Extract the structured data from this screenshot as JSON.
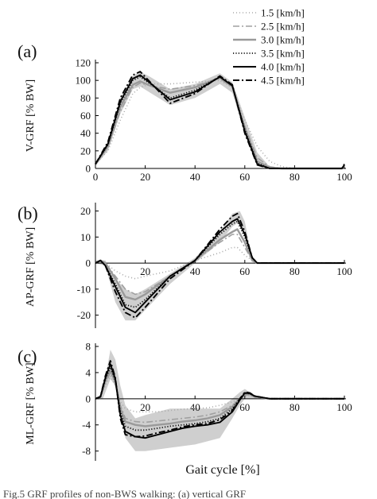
{
  "figure": {
    "x_label": "Gait cycle [%]",
    "caption_fragment": "Fig.5  GRF profiles of non-BWS walking: (a) vertical GRF"
  },
  "legend": [
    {
      "label": "1.5 [km/h]",
      "color": "#a8a8a8",
      "dash": "1 3",
      "width": 1.6
    },
    {
      "label": "2.5 [km/h]",
      "color": "#a0a0a0",
      "dash": "8 3 2 3",
      "width": 1.6
    },
    {
      "label": "3.0 [km/h]",
      "color": "#9a9a9a",
      "dash": "",
      "width": 2.4
    },
    {
      "label": "3.5 [km/h]",
      "color": "#111111",
      "dash": "1.2 2.2",
      "width": 1.8
    },
    {
      "label": "4.0 [km/h]",
      "color": "#000000",
      "dash": "",
      "width": 1.9
    },
    {
      "label": "4.5 [km/h]",
      "color": "#000000",
      "dash": "8 3 2 3",
      "width": 1.9
    }
  ],
  "chart_data": [
    {
      "type": "line",
      "panel_label": "(a)",
      "ylabel": "V-GRF [% BW]",
      "xlim": [
        0,
        100
      ],
      "ylim": [
        0,
        120
      ],
      "xticks": [
        0,
        20,
        40,
        60,
        80,
        100
      ],
      "yticks": [
        0,
        20,
        40,
        60,
        80,
        100,
        120
      ],
      "x": [
        0,
        5,
        10,
        15,
        18,
        22,
        30,
        40,
        50,
        55,
        60,
        65,
        70,
        75,
        80,
        90,
        99,
        100
      ],
      "band": {
        "x": [
          0,
          5,
          10,
          15,
          18,
          22,
          30,
          40,
          50,
          55,
          60,
          65,
          70
        ],
        "low": [
          3,
          20,
          62,
          90,
          93,
          86,
          72,
          80,
          96,
          86,
          40,
          8,
          0
        ],
        "high": [
          6,
          30,
          80,
          105,
          110,
          104,
          90,
          96,
          108,
          98,
          58,
          18,
          2
        ]
      },
      "series": [
        {
          "name": "1.5 [km/h]",
          "values": [
            5,
            20,
            55,
            85,
            92,
            96,
            96,
            98,
            100,
            92,
            55,
            25,
            8,
            2,
            0,
            0,
            0,
            3
          ]
        },
        {
          "name": "2.5 [km/h]",
          "values": [
            5,
            24,
            65,
            92,
            97,
            94,
            90,
            94,
            102,
            92,
            48,
            12,
            2,
            0,
            0,
            0,
            0,
            3
          ]
        },
        {
          "name": "3.0 [km/h]",
          "values": [
            5,
            25,
            70,
            95,
            99,
            94,
            86,
            92,
            103,
            93,
            46,
            8,
            1,
            0,
            0,
            0,
            0,
            3
          ]
        },
        {
          "name": "3.5 [km/h]",
          "values": [
            5,
            27,
            74,
            100,
            104,
            96,
            80,
            89,
            104,
            94,
            44,
            6,
            0,
            0,
            0,
            0,
            0,
            4
          ]
        },
        {
          "name": "4.0 [km/h]",
          "values": [
            5,
            28,
            76,
            102,
            106,
            97,
            78,
            87,
            104,
            94,
            42,
            5,
            0,
            0,
            0,
            0,
            0,
            4
          ]
        },
        {
          "name": "4.5 [km/h]",
          "values": [
            5,
            30,
            80,
            106,
            110,
            98,
            74,
            85,
            105,
            95,
            40,
            4,
            0,
            0,
            0,
            0,
            0,
            5
          ]
        }
      ]
    },
    {
      "type": "line",
      "panel_label": "(b)",
      "ylabel": "AP-GRF [% BW]",
      "xlim": [
        0,
        100
      ],
      "ylim": [
        -25,
        22
      ],
      "xticks": [
        20,
        40,
        60,
        80,
        100
      ],
      "yticks": [
        -20,
        -10,
        0,
        10,
        20
      ],
      "x": [
        0,
        2,
        4,
        8,
        12,
        16,
        20,
        30,
        40,
        50,
        55,
        57,
        60,
        63,
        65,
        70,
        80,
        90,
        100
      ],
      "band": {
        "x": [
          0,
          4,
          8,
          12,
          16,
          20,
          30,
          40,
          50,
          55,
          58,
          60,
          63
        ],
        "low": [
          0,
          -1,
          -15,
          -22,
          -22,
          -18,
          -8,
          0,
          8,
          14,
          16,
          12,
          0
        ],
        "high": [
          1,
          1,
          -6,
          -10,
          -12,
          -10,
          -4,
          2,
          12,
          19,
          20,
          16,
          1
        ]
      },
      "series": [
        {
          "name": "1.5 [km/h]",
          "values": [
            0,
            1,
            0,
            -3,
            -5,
            -6,
            -5,
            -3,
            1,
            4,
            6,
            6,
            3,
            1,
            0,
            0,
            0,
            0,
            0
          ]
        },
        {
          "name": "2.5 [km/h]",
          "values": [
            0,
            1,
            0,
            -5,
            -10,
            -12,
            -11,
            -5,
            1,
            8,
            11,
            11,
            6,
            1,
            0,
            0,
            0,
            0,
            0
          ]
        },
        {
          "name": "3.0 [km/h]",
          "values": [
            0,
            1,
            0,
            -6,
            -13,
            -14,
            -12,
            -5,
            1,
            9,
            12,
            13,
            8,
            1,
            0,
            0,
            0,
            0,
            0
          ]
        },
        {
          "name": "3.5 [km/h]",
          "values": [
            0,
            1,
            -1,
            -8,
            -16,
            -17,
            -14,
            -5,
            1,
            11,
            15,
            16,
            10,
            2,
            0,
            0,
            0,
            0,
            0
          ]
        },
        {
          "name": "4.0 [km/h]",
          "values": [
            0,
            1,
            -1,
            -9,
            -17,
            -19,
            -15,
            -5,
            1,
            12,
            16,
            17,
            11,
            2,
            0,
            0,
            0,
            0,
            0
          ]
        },
        {
          "name": "4.5 [km/h]",
          "values": [
            0,
            1,
            -1,
            -11,
            -19,
            -21,
            -17,
            -6,
            1,
            13,
            18,
            19,
            12,
            2,
            0,
            0,
            0,
            0,
            0
          ]
        }
      ]
    },
    {
      "type": "line",
      "panel_label": "(c)",
      "ylabel": "ML-GRF [% BW]",
      "xlim": [
        0,
        100
      ],
      "ylim": [
        -9.5,
        8
      ],
      "xticks": [
        20,
        40,
        60,
        80,
        100
      ],
      "yticks": [
        -8,
        -4,
        0,
        4,
        8
      ],
      "x": [
        0,
        2,
        4,
        6,
        8,
        10,
        12,
        16,
        20,
        25,
        30,
        35,
        40,
        45,
        50,
        55,
        58,
        60,
        62,
        64,
        70,
        80,
        90,
        100
      ],
      "band": {
        "x": [
          0,
          3,
          6,
          8,
          10,
          12,
          16,
          20,
          30,
          40,
          50,
          55,
          58,
          60,
          62,
          65
        ],
        "low": [
          0,
          0,
          3,
          2,
          -2,
          -6,
          -8,
          -8,
          -7.5,
          -7,
          -6,
          -3,
          -1,
          0,
          0,
          0
        ],
        "high": [
          0,
          1,
          7.5,
          6,
          2,
          -1,
          -3,
          -2.5,
          -1.5,
          -1.5,
          -1.5,
          0,
          1,
          1.5,
          1,
          0.3
        ]
      },
      "series": [
        {
          "name": "1.5 [km/h]",
          "values": [
            0,
            0.3,
            2,
            3.5,
            2,
            -0.5,
            -1.5,
            -2,
            -2,
            -2,
            -1.8,
            -1.6,
            -1.5,
            -1.4,
            -1,
            -0.5,
            0,
            0.4,
            0.5,
            0.3,
            0,
            0,
            0,
            0
          ]
        },
        {
          "name": "2.5 [km/h]",
          "values": [
            0,
            0.3,
            2.5,
            4,
            2.5,
            -1,
            -3,
            -3.5,
            -3.6,
            -3.4,
            -3.2,
            -3,
            -2.8,
            -2.5,
            -2,
            -1,
            0,
            0.6,
            0.6,
            0.3,
            0,
            0,
            0,
            0
          ]
        },
        {
          "name": "3.0 [km/h]",
          "values": [
            0,
            0.3,
            2.7,
            4.3,
            2.6,
            -1.5,
            -3.5,
            -4,
            -4.2,
            -4,
            -3.8,
            -3.5,
            -3.3,
            -3,
            -2.5,
            -1.2,
            0,
            0.7,
            0.7,
            0.3,
            0,
            0,
            0,
            0
          ]
        },
        {
          "name": "3.5 [km/h]",
          "values": [
            0,
            0.3,
            3,
            4.8,
            2.8,
            -2,
            -4.2,
            -4.8,
            -4.8,
            -4.5,
            -4.2,
            -4,
            -3.8,
            -3.5,
            -3,
            -1.5,
            0,
            0.8,
            0.8,
            0.4,
            0,
            0,
            0,
            0
          ]
        },
        {
          "name": "4.0 [km/h]",
          "values": [
            0,
            0.3,
            3.2,
            5.3,
            3,
            -2.5,
            -5,
            -5.8,
            -6,
            -5.5,
            -5,
            -4.5,
            -4.2,
            -4,
            -3.6,
            -2,
            -0.2,
            0.9,
            0.8,
            0.4,
            0,
            0,
            0,
            0
          ]
        },
        {
          "name": "4.5 [km/h]",
          "values": [
            0,
            0.3,
            3.5,
            5.8,
            3.2,
            -3,
            -5.5,
            -5.8,
            -5.7,
            -5.2,
            -4.8,
            -4.3,
            -4,
            -3.8,
            -3.2,
            -1.8,
            0,
            1,
            0.9,
            0.4,
            0,
            0,
            0,
            0
          ]
        }
      ]
    }
  ]
}
